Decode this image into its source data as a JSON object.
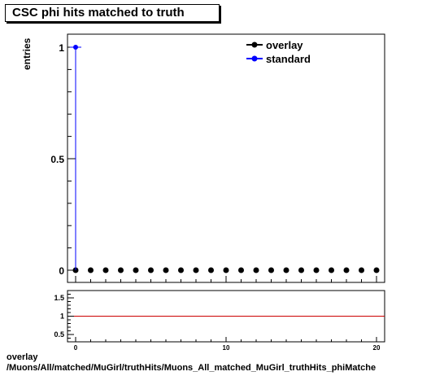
{
  "chart_data": [
    {
      "type": "scatter",
      "title": "CSC phi hits matched to truth",
      "ylabel": "entries",
      "xlim": [
        -0.5,
        20.5
      ],
      "ylim": [
        0,
        1.1
      ],
      "yticks": [
        0,
        0.5,
        1
      ],
      "ytick_labels": [
        "0",
        "0.5",
        "1"
      ],
      "legend_position": "top-right",
      "series": [
        {
          "name": "overlay",
          "color": "#000000",
          "x": [
            0,
            1,
            2,
            3,
            4,
            5,
            6,
            7,
            8,
            9,
            10,
            11,
            12,
            13,
            14,
            15,
            16,
            17,
            18,
            19,
            20
          ],
          "y": [
            0,
            0,
            0,
            0,
            0,
            0,
            0,
            0,
            0,
            0,
            0,
            0,
            0,
            0,
            0,
            0,
            0,
            0,
            0,
            0,
            0
          ]
        },
        {
          "name": "standard",
          "color": "#0000ff",
          "x": [
            0
          ],
          "y": [
            1
          ]
        }
      ]
    },
    {
      "type": "line",
      "xlim": [
        -0.5,
        20.5
      ],
      "ylim": [
        0.3,
        1.7
      ],
      "xticks": [
        0,
        10,
        20
      ],
      "xtick_labels": [
        "0",
        "10",
        "20"
      ],
      "yticks": [
        0.5,
        1,
        1.5
      ],
      "ytick_labels": [
        "0.5",
        "1",
        "1.5"
      ],
      "reference_line": {
        "y": 1,
        "color": "#cc0000"
      }
    }
  ],
  "footer": {
    "line1": "overlay",
    "line2": "/Muons/All/matched/MuGirl/truthHits/Muons_All_matched_MuGirl_truthHits_phiMatche"
  }
}
